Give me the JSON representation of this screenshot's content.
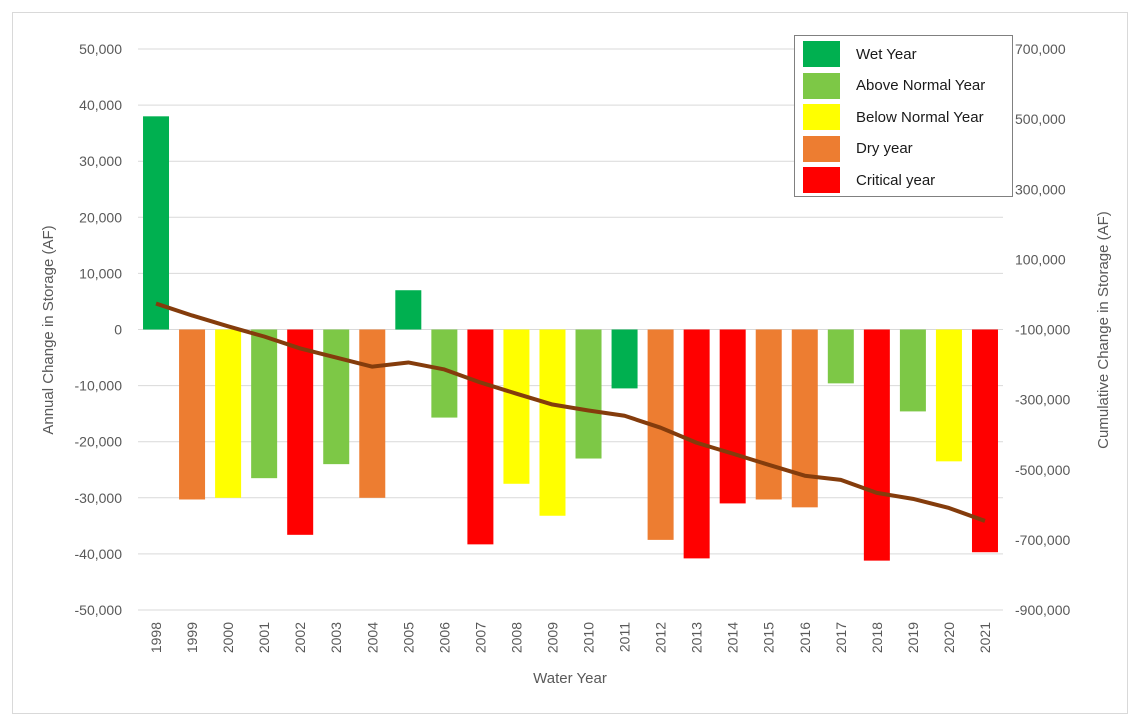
{
  "chart_data": {
    "type": "bar",
    "xlabel": "Water Year",
    "ylabel": "Annual Change in Storage (AF)",
    "y2label": "Cumulative Change in Storage (AF)",
    "ylim": [
      -50000,
      50000
    ],
    "y2lim": [
      -900000,
      700000
    ],
    "yticks": [
      "50,000",
      "40,000",
      "30,000",
      "20,000",
      "10,000",
      "0",
      "-10,000",
      "-20,000",
      "-30,000",
      "-40,000",
      "-50,000"
    ],
    "y2ticks": [
      "700,000",
      "500,000",
      "300,000",
      "100,000",
      "-100,000",
      "-300,000",
      "-500,000",
      "-700,000",
      "-900,000"
    ],
    "grid": true,
    "legend_position": "top-right",
    "categories": [
      "1998",
      "1999",
      "2000",
      "2001",
      "2002",
      "2003",
      "2004",
      "2005",
      "2006",
      "2007",
      "2008",
      "2009",
      "2010",
      "2011",
      "2012",
      "2013",
      "2014",
      "2015",
      "2016",
      "2017",
      "2018",
      "2019",
      "2020",
      "2021"
    ],
    "values": [
      38000,
      -30300,
      -30000,
      -26500,
      -36600,
      -24000,
      -30000,
      7000,
      -15700,
      -38300,
      -27500,
      -33200,
      -23000,
      -10500,
      -37500,
      -40800,
      -31000,
      -30300,
      -31700,
      -9600,
      -41200,
      -14600,
      -23500,
      -39700
    ],
    "year_types": [
      "wet",
      "dry",
      "below",
      "above",
      "critical",
      "above",
      "dry",
      "wet",
      "above",
      "critical",
      "below",
      "below",
      "above",
      "wet",
      "dry",
      "critical",
      "critical",
      "dry",
      "dry",
      "above",
      "critical",
      "above",
      "below",
      "critical"
    ],
    "cumulative": [
      -26000,
      -60000,
      -91000,
      -120000,
      -154000,
      -180000,
      -206000,
      -194000,
      -214000,
      -251000,
      -283000,
      -314000,
      -331000,
      -346000,
      -380000,
      -423000,
      -454000,
      -486000,
      -517000,
      -529000,
      -566000,
      -583000,
      -609000,
      -646000
    ],
    "legend": [
      {
        "key": "wet",
        "label": "Wet Year",
        "color": "#00b050"
      },
      {
        "key": "above",
        "label": "Above Normal Year",
        "color": "#7dc846"
      },
      {
        "key": "below",
        "label": "Below Normal Year",
        "color": "#ffff00"
      },
      {
        "key": "dry",
        "label": "Dry year",
        "color": "#ed7d31"
      },
      {
        "key": "critical",
        "label": "Critical year",
        "color": "#ff0000"
      }
    ],
    "line_color": "#843c0c"
  }
}
